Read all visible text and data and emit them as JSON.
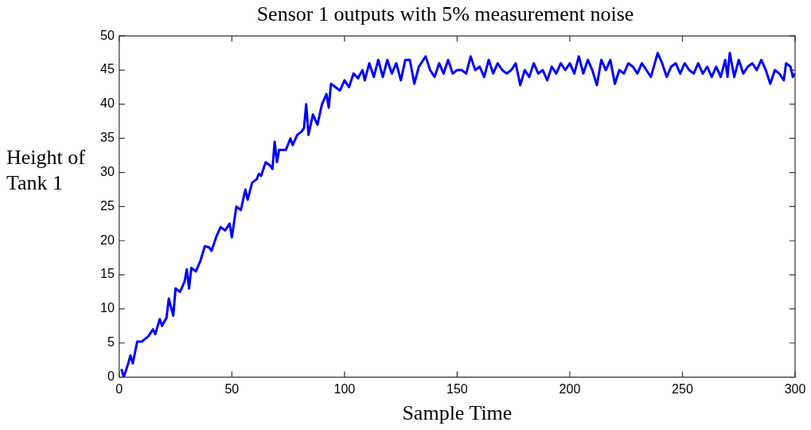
{
  "chart_data": {
    "type": "line",
    "title": "Sensor 1 outputs with 5% measurement noise",
    "xlabel": "Sample Time",
    "ylabel": "Height of Tank 1",
    "x": [
      1,
      2,
      4,
      5,
      6,
      8,
      10,
      13,
      15,
      16,
      18,
      19,
      21,
      22,
      24,
      25,
      27,
      29,
      30,
      31,
      32,
      34,
      36,
      38,
      40,
      41,
      43,
      45,
      47,
      49,
      50,
      52,
      54,
      56,
      57,
      59,
      61,
      62,
      63,
      65,
      67,
      68,
      69,
      70,
      71,
      74,
      76,
      77,
      79,
      81,
      82,
      83,
      84,
      86,
      88,
      90,
      92,
      93,
      94,
      96,
      98,
      100,
      102,
      104,
      106,
      108,
      109,
      111,
      113,
      115,
      117,
      119,
      121,
      123,
      125,
      127,
      129,
      131,
      133,
      136,
      138,
      140,
      142,
      144,
      146,
      148,
      150,
      152,
      154,
      156,
      158,
      160,
      162,
      164,
      166,
      168,
      170,
      172,
      174,
      176,
      178,
      180,
      182,
      184,
      186,
      188,
      190,
      192,
      194,
      196,
      198,
      200,
      202,
      204,
      206,
      208,
      210,
      212,
      214,
      216,
      218,
      220,
      222,
      224,
      226,
      228,
      230,
      232,
      234,
      236,
      239,
      241,
      243,
      245,
      247,
      249,
      251,
      253,
      255,
      257,
      259,
      261,
      263,
      265,
      267,
      269,
      270,
      271,
      273,
      275,
      277,
      279,
      281,
      283,
      285,
      287,
      289,
      291,
      293,
      295,
      296,
      298,
      299,
      300
    ],
    "series": [
      {
        "color": "#0000ff",
        "values": [
          1.2,
          0,
          2,
          3.2,
          2,
          5.2,
          5.2,
          6,
          7,
          6.3,
          8.5,
          7.5,
          8.7,
          11.5,
          9,
          13,
          12.5,
          14,
          15.8,
          13,
          16,
          15.5,
          17,
          19.2,
          19,
          18.5,
          20.5,
          22,
          21.5,
          22.5,
          20.5,
          25,
          24.5,
          27.5,
          26,
          28.5,
          29,
          29.8,
          29.5,
          31.5,
          31,
          30.5,
          34.5,
          31.5,
          33.3,
          33.3,
          35,
          34,
          35.5,
          36,
          36.5,
          40,
          35.5,
          38.5,
          37,
          40,
          41.5,
          39.5,
          43,
          42.5,
          42,
          43.5,
          42.5,
          44.5,
          43.8,
          45,
          43.5,
          46,
          44,
          46.5,
          44,
          46.5,
          44.5,
          46,
          43.5,
          46.5,
          46.5,
          43,
          45.5,
          47,
          45,
          44,
          46,
          44.5,
          46.5,
          44.5,
          45,
          45,
          44.5,
          47,
          45,
          45.5,
          44,
          46.5,
          44.5,
          46,
          45,
          44.5,
          45,
          46,
          42.8,
          45,
          44,
          46,
          44.5,
          45,
          43.5,
          45.5,
          44.5,
          46,
          45,
          46,
          44.5,
          47,
          44.5,
          46.5,
          45,
          42.8,
          46.5,
          45,
          46.5,
          43,
          45,
          44.5,
          46,
          45.5,
          44.5,
          46,
          45,
          44,
          47.5,
          46,
          44,
          45.5,
          46,
          44.5,
          46,
          45,
          44.5,
          46,
          44.5,
          45.5,
          44,
          45.5,
          44,
          46.5,
          44,
          47.5,
          44,
          46.5,
          44.5,
          45.5,
          46,
          45,
          46.5,
          45,
          43,
          45,
          44.5,
          43.5,
          46,
          45.5,
          44,
          44.5
        ]
      }
    ],
    "xlim": [
      0,
      300
    ],
    "xticks": [
      0,
      50,
      100,
      150,
      200,
      250,
      300
    ],
    "ylim": [
      0,
      50
    ],
    "yticks": [
      0,
      5,
      10,
      15,
      20,
      25,
      30,
      35,
      40,
      45,
      50
    ],
    "grid": false,
    "legend": false,
    "marker": "none",
    "line_style": "solid"
  }
}
